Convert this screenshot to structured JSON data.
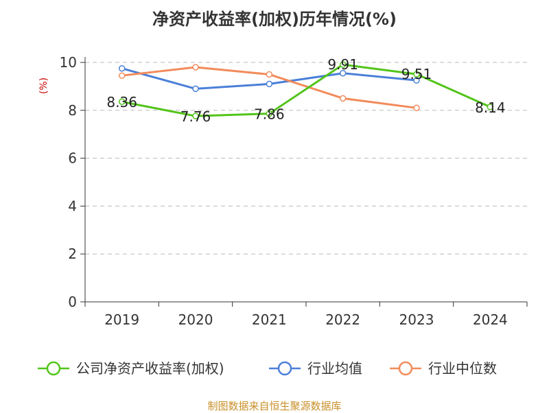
{
  "title": "净资产收益率(加权)历年情况(%)",
  "source": "制图数据来自恒生聚源数据库",
  "chart_data": {
    "type": "line",
    "title": "净资产收益率(加权)历年情况(%)",
    "ylabel": "(%)",
    "xlabel": "",
    "categories": [
      "2019",
      "2020",
      "2021",
      "2022",
      "2023",
      "2024"
    ],
    "ylim": [
      0,
      10
    ],
    "yticks": [
      0,
      2,
      4,
      6,
      8,
      10
    ],
    "grid": true,
    "legend_position": "bottom",
    "series": [
      {
        "name": "公司净资产收益率(加权)",
        "color": "#52c41a",
        "values": [
          8.36,
          7.76,
          7.86,
          9.91,
          9.51,
          8.14
        ],
        "labels": [
          "8.36",
          "7.76",
          "7.86",
          "9.91",
          "9.51",
          "8.14"
        ]
      },
      {
        "name": "行业均值",
        "color": "#4a7fd8",
        "values": [
          9.75,
          8.9,
          9.1,
          9.55,
          9.25,
          null
        ]
      },
      {
        "name": "行业中位数",
        "color": "#f28b5b",
        "values": [
          9.45,
          9.8,
          9.5,
          8.5,
          8.1,
          null
        ]
      }
    ]
  }
}
